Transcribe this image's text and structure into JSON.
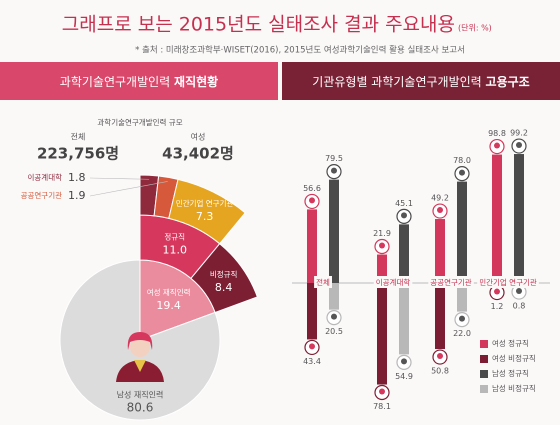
{
  "header": {
    "title": "그래프로 보는 2015년도 실태조사 결과 주요내용",
    "unit": "(단위: %)",
    "source": "* 출처 : 미래창조과학부·WISET(2016), 2015년도 여성과학기술인력 활용 실태조사 보고서"
  },
  "panels": [
    {
      "heading": "과학기술연구개발인력",
      "heading_bold": "재직현황"
    },
    {
      "heading": "기관유형별 과학기술연구개발인력",
      "heading_bold": "고용구조"
    }
  ],
  "summary": {
    "title": "과학기술연구개발인력 규모",
    "items": [
      {
        "label": "전체",
        "value": "223,756명"
      },
      {
        "label": "여성",
        "value": "43,402명"
      }
    ]
  },
  "chart_data": [
    {
      "type": "sunburst",
      "segments": [
        {
          "name": "여성 재직인력",
          "value": 19.4,
          "color": "#ea8c9e",
          "children": [
            {
              "name": "정규직",
              "value": 11.0,
              "value_label": "11.0",
              "color": "#d6385d",
              "children": [
                {
                  "name": "이공계대학",
                  "value": 1.8,
                  "color": "#8e2a3c"
                },
                {
                  "name": "공공연구기관",
                  "value": 1.9,
                  "color": "#d5593a"
                },
                {
                  "name": "민간기업 연구기관",
                  "value": 7.3,
                  "color": "#e6a521"
                }
              ]
            },
            {
              "name": "비정규직",
              "value": 8.4,
              "color": "#7d1f33"
            }
          ]
        },
        {
          "name": "남성 재직인력",
          "value": 80.6,
          "color": "#dcdcdc"
        }
      ]
    },
    {
      "type": "bar",
      "categories": [
        "전체",
        "이공계대학",
        "공공연구기관",
        "민간기업 연구기관"
      ],
      "ylim": [
        0,
        100
      ],
      "series": [
        {
          "name": "여성 정규직",
          "color": "#d3375b",
          "direction": "up",
          "values": [
            56.6,
            21.9,
            49.2,
            98.8
          ]
        },
        {
          "name": "여성 비정규직",
          "color": "#7d1d33",
          "direction": "down",
          "values": [
            43.4,
            78.1,
            50.8,
            1.2
          ]
        },
        {
          "name": "남성 정규직",
          "color": "#4a4a4a",
          "direction": "up",
          "values": [
            79.5,
            45.1,
            78.0,
            99.2
          ],
          "value_labels": [
            "79.5",
            "45.1",
            "78.0",
            "99.2"
          ]
        },
        {
          "name": "남성 비정규직",
          "color": "#b8b8b8",
          "direction": "down",
          "values": [
            20.5,
            54.9,
            22.0,
            0.8
          ],
          "value_labels": [
            "20.5",
            "54.9",
            "22.0",
            "0.8"
          ]
        }
      ]
    }
  ]
}
